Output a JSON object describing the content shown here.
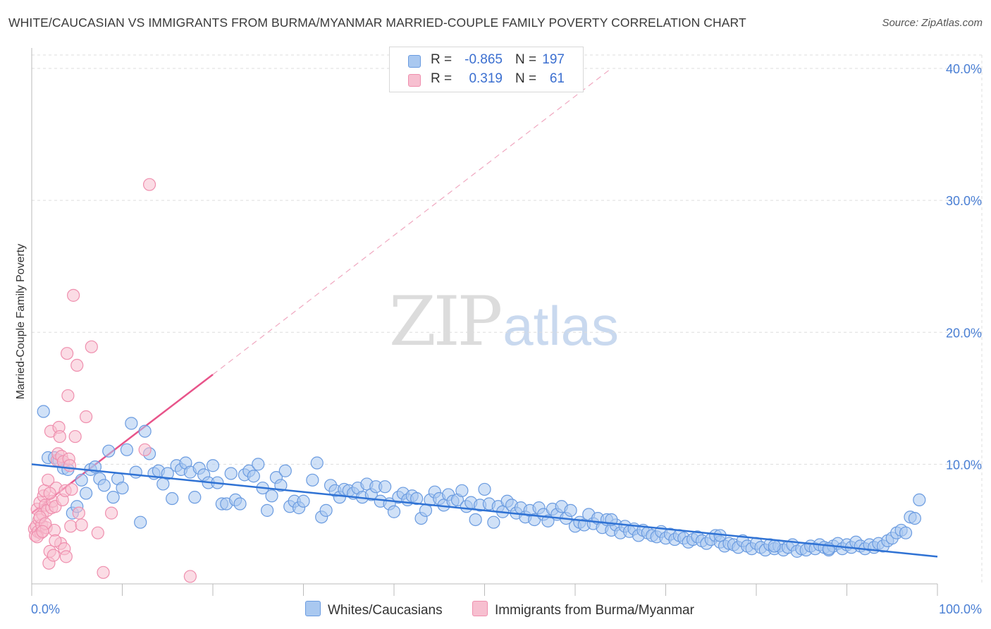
{
  "title": "WHITE/CAUCASIAN VS IMMIGRANTS FROM BURMA/MYANMAR MARRIED-COUPLE FAMILY POVERTY CORRELATION CHART",
  "source": "Source: ZipAtlas.com",
  "watermark": {
    "zip": "ZIP",
    "atlas": "atlas"
  },
  "colors": {
    "blue_fill": "#a9c8f0",
    "blue_stroke": "#6a9be0",
    "blue_line": "#2f72d4",
    "pink_fill": "#f7bfd0",
    "pink_stroke": "#ef8fae",
    "pink_line": "#e8548a",
    "grid": "#dddddd",
    "tick_label": "#4a7fd4"
  },
  "legend": {
    "rows": [
      {
        "r_label": "R =",
        "r_value": "-0.865",
        "n_label": "N =",
        "n_value": "197"
      },
      {
        "r_label": "R =",
        "r_value": "0.319",
        "n_label": "N =",
        "n_value": "61"
      }
    ]
  },
  "bottom_legend": {
    "series1": "Whites/Caucasians",
    "series2": "Immigrants from Burma/Myanmar"
  },
  "chart_data": {
    "type": "scatter",
    "title": "WHITE/CAUCASIAN VS IMMIGRANTS FROM BURMA/MYANMAR MARRIED-COUPLE FAMILY POVERTY CORRELATION CHART",
    "xlabel": "",
    "ylabel": "Married-Couple Family Poverty",
    "xlim": [
      0,
      100
    ],
    "ylim": [
      0,
      40
    ],
    "x_tick_labels": [
      "0.0%",
      "100.0%"
    ],
    "y_ticks": [
      10,
      20,
      30,
      40
    ],
    "y_tick_labels": [
      "10.0%",
      "20.0%",
      "30.0%",
      "40.0%"
    ],
    "legend_position": "top-center",
    "series": [
      {
        "name": "Whites/Caucasians",
        "R": -0.865,
        "N": 197,
        "trend": {
          "x": [
            0,
            100
          ],
          "y": [
            10.0,
            3.0
          ]
        },
        "points": [
          [
            1.3,
            14.0
          ],
          [
            1.8,
            10.5
          ],
          [
            2.5,
            10.5
          ],
          [
            3.0,
            10.3
          ],
          [
            3.5,
            9.7
          ],
          [
            4,
            9.6
          ],
          [
            4.5,
            6.3
          ],
          [
            5,
            6.8
          ],
          [
            5.5,
            8.8
          ],
          [
            6,
            7.8
          ],
          [
            6.5,
            9.6
          ],
          [
            7,
            9.8
          ],
          [
            7.5,
            8.9
          ],
          [
            8,
            8.4
          ],
          [
            8.5,
            11.0
          ],
          [
            9,
            7.5
          ],
          [
            9.5,
            8.9
          ],
          [
            10,
            8.2
          ],
          [
            10.5,
            11.1
          ],
          [
            11,
            13.1
          ],
          [
            11.5,
            9.4
          ],
          [
            12,
            5.6
          ],
          [
            12.5,
            12.5
          ],
          [
            13,
            10.8
          ],
          [
            13.5,
            9.3
          ],
          [
            14,
            9.5
          ],
          [
            14.5,
            8.5
          ],
          [
            15,
            9.3
          ],
          [
            15.5,
            7.4
          ],
          [
            16,
            9.9
          ],
          [
            16.5,
            9.6
          ],
          [
            17,
            10.1
          ],
          [
            17.5,
            9.4
          ],
          [
            18,
            7.5
          ],
          [
            18.5,
            9.7
          ],
          [
            19,
            9.2
          ],
          [
            19.5,
            8.6
          ],
          [
            20,
            9.9
          ],
          [
            20.5,
            8.6
          ],
          [
            21,
            7.0
          ],
          [
            21.5,
            7.0
          ],
          [
            22,
            9.3
          ],
          [
            22.5,
            7.3
          ],
          [
            23,
            7.0
          ],
          [
            23.5,
            9.2
          ],
          [
            24,
            9.5
          ],
          [
            24.5,
            9.1
          ],
          [
            25,
            10.0
          ],
          [
            25.5,
            8.2
          ],
          [
            26,
            6.5
          ],
          [
            26.5,
            7.6
          ],
          [
            27,
            9.0
          ],
          [
            27.5,
            8.4
          ],
          [
            28,
            9.5
          ],
          [
            28.5,
            6.8
          ],
          [
            29,
            7.2
          ],
          [
            29.5,
            6.7
          ],
          [
            30,
            7.2
          ],
          [
            31,
            8.8
          ],
          [
            31.5,
            10.1
          ],
          [
            32,
            6.0
          ],
          [
            32.5,
            6.5
          ],
          [
            33,
            8.4
          ],
          [
            33.5,
            8.0
          ],
          [
            34,
            7.5
          ],
          [
            34.5,
            8.1
          ],
          [
            35,
            8.0
          ],
          [
            35.5,
            7.8
          ],
          [
            36,
            8.2
          ],
          [
            36.5,
            7.5
          ],
          [
            37,
            8.5
          ],
          [
            37.5,
            7.7
          ],
          [
            38,
            8.3
          ],
          [
            38.5,
            7.2
          ],
          [
            39,
            8.3
          ],
          [
            39.5,
            7.0
          ],
          [
            40,
            6.4
          ],
          [
            40.5,
            7.5
          ],
          [
            41,
            7.8
          ],
          [
            41.5,
            7.3
          ],
          [
            42,
            7.6
          ],
          [
            42.5,
            7.4
          ],
          [
            43,
            5.9
          ],
          [
            43.5,
            6.5
          ],
          [
            44,
            7.3
          ],
          [
            44.5,
            7.9
          ],
          [
            45,
            7.4
          ],
          [
            45.5,
            6.9
          ],
          [
            46,
            7.7
          ],
          [
            46.5,
            7.2
          ],
          [
            47,
            7.3
          ],
          [
            47.5,
            8.0
          ],
          [
            48,
            6.8
          ],
          [
            48.5,
            7.1
          ],
          [
            49,
            5.8
          ],
          [
            49.5,
            6.9
          ],
          [
            50,
            8.1
          ],
          [
            50.5,
            7.0
          ],
          [
            51,
            5.6
          ],
          [
            51.5,
            6.8
          ],
          [
            52,
            6.4
          ],
          [
            52.5,
            7.2
          ],
          [
            53,
            6.9
          ],
          [
            53.5,
            6.3
          ],
          [
            54,
            6.7
          ],
          [
            54.5,
            6.0
          ],
          [
            55,
            6.5
          ],
          [
            55.5,
            5.8
          ],
          [
            56,
            6.7
          ],
          [
            56.5,
            6.2
          ],
          [
            57,
            5.7
          ],
          [
            57.5,
            6.6
          ],
          [
            58,
            6.2
          ],
          [
            58.5,
            6.8
          ],
          [
            59,
            5.9
          ],
          [
            59.5,
            6.5
          ],
          [
            60,
            5.3
          ],
          [
            60.5,
            5.6
          ],
          [
            61,
            5.4
          ],
          [
            61.5,
            6.2
          ],
          [
            62,
            5.5
          ],
          [
            62.5,
            5.9
          ],
          [
            63,
            5.2
          ],
          [
            63.5,
            5.8
          ],
          [
            64,
            5.0
          ],
          [
            64.5,
            5.4
          ],
          [
            65,
            4.8
          ],
          [
            65.5,
            5.3
          ],
          [
            66,
            4.9
          ],
          [
            66.5,
            5.1
          ],
          [
            67,
            4.6
          ],
          [
            67.5,
            5.0
          ],
          [
            68,
            4.8
          ],
          [
            68.5,
            4.6
          ],
          [
            69,
            4.5
          ],
          [
            69.5,
            4.9
          ],
          [
            70,
            4.4
          ],
          [
            70.5,
            4.7
          ],
          [
            71,
            4.3
          ],
          [
            71.5,
            4.6
          ],
          [
            72,
            4.4
          ],
          [
            72.5,
            4.1
          ],
          [
            73,
            4.3
          ],
          [
            73.5,
            4.5
          ],
          [
            74,
            4.2
          ],
          [
            74.5,
            4.0
          ],
          [
            75,
            4.3
          ],
          [
            75.5,
            4.6
          ],
          [
            76,
            4.1
          ],
          [
            76.5,
            3.8
          ],
          [
            77,
            4.0
          ],
          [
            77.5,
            3.9
          ],
          [
            78,
            3.7
          ],
          [
            78.5,
            4.2
          ],
          [
            79,
            3.8
          ],
          [
            79.5,
            3.6
          ],
          [
            80,
            4.0
          ],
          [
            80.5,
            3.7
          ],
          [
            81,
            3.5
          ],
          [
            81.5,
            3.9
          ],
          [
            82,
            3.6
          ],
          [
            82.5,
            3.8
          ],
          [
            83,
            3.5
          ],
          [
            83.5,
            3.7
          ],
          [
            84,
            3.9
          ],
          [
            84.5,
            3.4
          ],
          [
            85,
            3.6
          ],
          [
            85.5,
            3.5
          ],
          [
            86,
            3.8
          ],
          [
            86.5,
            3.6
          ],
          [
            87,
            3.9
          ],
          [
            87.5,
            3.7
          ],
          [
            88,
            3.5
          ],
          [
            88.5,
            3.8
          ],
          [
            89,
            4.0
          ],
          [
            89.5,
            3.6
          ],
          [
            90,
            3.9
          ],
          [
            90.5,
            3.7
          ],
          [
            91,
            4.1
          ],
          [
            91.5,
            3.8
          ],
          [
            92,
            3.6
          ],
          [
            92.5,
            3.9
          ],
          [
            93,
            3.7
          ],
          [
            93.5,
            4.0
          ],
          [
            94,
            3.8
          ],
          [
            94.5,
            4.2
          ],
          [
            95,
            4.4
          ],
          [
            95.5,
            4.8
          ],
          [
            96,
            5.0
          ],
          [
            96.5,
            4.8
          ],
          [
            97,
            6.0
          ],
          [
            97.5,
            5.9
          ],
          [
            98,
            7.3
          ],
          [
            76,
            4.6
          ],
          [
            82,
            3.8
          ],
          [
            88,
            3.6
          ],
          [
            64,
            5.8
          ]
        ]
      },
      {
        "name": "Immigrants from Burma/Myanmar",
        "R": 0.319,
        "N": 61,
        "trend": {
          "x": [
            0,
            20
          ],
          "y": [
            6.3,
            16.8
          ],
          "dashed_extension": {
            "x": [
              20,
              64
            ],
            "y": [
              16.8,
              40.0
            ]
          }
        },
        "points": [
          [
            0.3,
            5.1
          ],
          [
            0.4,
            4.6
          ],
          [
            0.5,
            5.3
          ],
          [
            0.6,
            6.6
          ],
          [
            0.7,
            4.9
          ],
          [
            0.8,
            5.8
          ],
          [
            0.9,
            7.1
          ],
          [
            1.0,
            4.8
          ],
          [
            1.1,
            5.4
          ],
          [
            1.2,
            6.2
          ],
          [
            1.3,
            7.6
          ],
          [
            1.4,
            8.0
          ],
          [
            1.5,
            6.9
          ],
          [
            1.6,
            5.2
          ],
          [
            1.7,
            6.5
          ],
          [
            1.8,
            8.8
          ],
          [
            1.9,
            2.5
          ],
          [
            2.0,
            3.4
          ],
          [
            2.1,
            12.5
          ],
          [
            2.2,
            6.7
          ],
          [
            2.3,
            7.2
          ],
          [
            2.4,
            3.1
          ],
          [
            2.5,
            5.0
          ],
          [
            2.6,
            6.8
          ],
          [
            2.7,
            8.2
          ],
          [
            2.8,
            10.3
          ],
          [
            2.9,
            10.8
          ],
          [
            3.0,
            12.8
          ],
          [
            3.1,
            12.1
          ],
          [
            3.2,
            4.0
          ],
          [
            3.3,
            10.6
          ],
          [
            3.4,
            7.3
          ],
          [
            3.5,
            10.2
          ],
          [
            3.6,
            3.6
          ],
          [
            3.7,
            8.0
          ],
          [
            3.8,
            3.0
          ],
          [
            3.9,
            18.4
          ],
          [
            4.0,
            15.2
          ],
          [
            4.1,
            10.4
          ],
          [
            4.2,
            9.9
          ],
          [
            4.3,
            5.3
          ],
          [
            4.4,
            8.1
          ],
          [
            4.6,
            22.8
          ],
          [
            4.8,
            12.1
          ],
          [
            5.0,
            17.5
          ],
          [
            5.2,
            6.3
          ],
          [
            5.5,
            5.4
          ],
          [
            6.0,
            13.6
          ],
          [
            6.6,
            18.9
          ],
          [
            7.3,
            4.8
          ],
          [
            7.9,
            1.8
          ],
          [
            8.8,
            6.3
          ],
          [
            12.5,
            11.1
          ],
          [
            13.0,
            31.2
          ],
          [
            17.5,
            1.5
          ],
          [
            0.9,
            6.0
          ],
          [
            1.5,
            5.5
          ],
          [
            2.0,
            7.8
          ],
          [
            0.6,
            4.5
          ],
          [
            1.2,
            4.9
          ],
          [
            2.6,
            4.2
          ]
        ]
      }
    ]
  }
}
